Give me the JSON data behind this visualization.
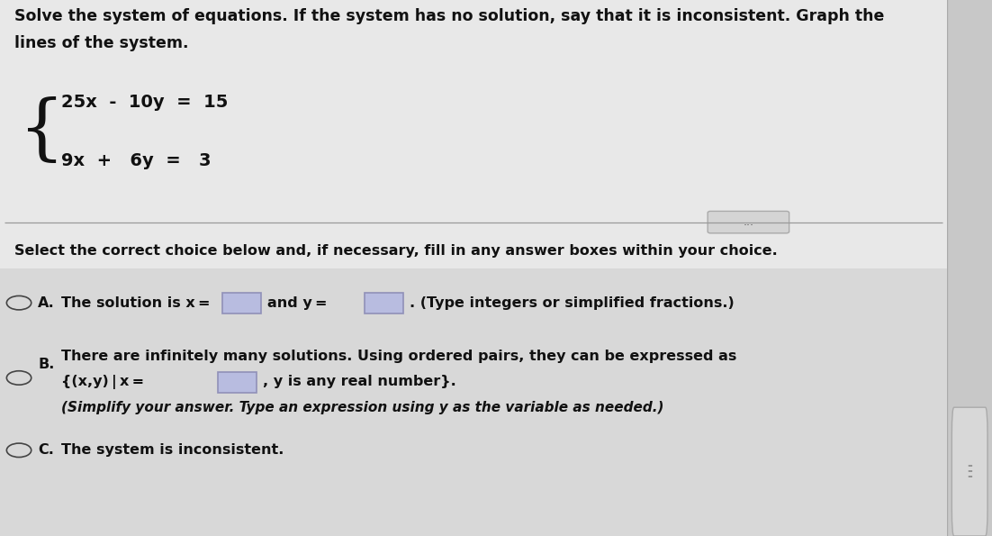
{
  "bg_color": "#c8c8c8",
  "main_bg": "#e2e2e2",
  "upper_bg": "#e8e8e8",
  "lower_bg": "#d8d8d8",
  "title_text_line1": "Solve the system of equations. If the system has no solution, say that it is inconsistent. Graph the",
  "title_text_line2": "lines of the system.",
  "eq1": "25x  -  10y  =  15",
  "eq2": "9x  +   6y  =   3",
  "divider_text": "...",
  "instruction": "Select the correct choice below and, if necessary, fill in any answer boxes within your choice.",
  "choice_A_label": "A.",
  "choice_A_text1": "The solution is x =",
  "choice_A_text2": "and y =",
  "choice_A_text3": ". (Type integers or simplified fractions.)",
  "choice_B_label": "B.",
  "choice_B_line1": "There are infinitely many solutions. Using ordered pairs, they can be expressed as",
  "choice_B_line2a": "{(x,y) | x =",
  "choice_B_line2b": ", y is any real number}.",
  "choice_B_line3": "(Simplify your answer. Type an expression using y as the variable as needed.)",
  "choice_C_label": "C.",
  "choice_C_text": "The system is inconsistent.",
  "box_color": "#b8bce0",
  "box_edge_color": "#9090b8",
  "text_color": "#111111",
  "circle_color": "#444444",
  "font_size_title": 12.5,
  "font_size_eq": 14,
  "font_size_body": 11.5,
  "right_panel_bg": "#c0c0c0",
  "divider_line_color": "#999999",
  "pill_bg": "#d4d4d4",
  "pill_edge": "#aaaaaa",
  "scrollbar_bg": "#d8d8d8",
  "scrollbar_edge": "#aaaaaa"
}
